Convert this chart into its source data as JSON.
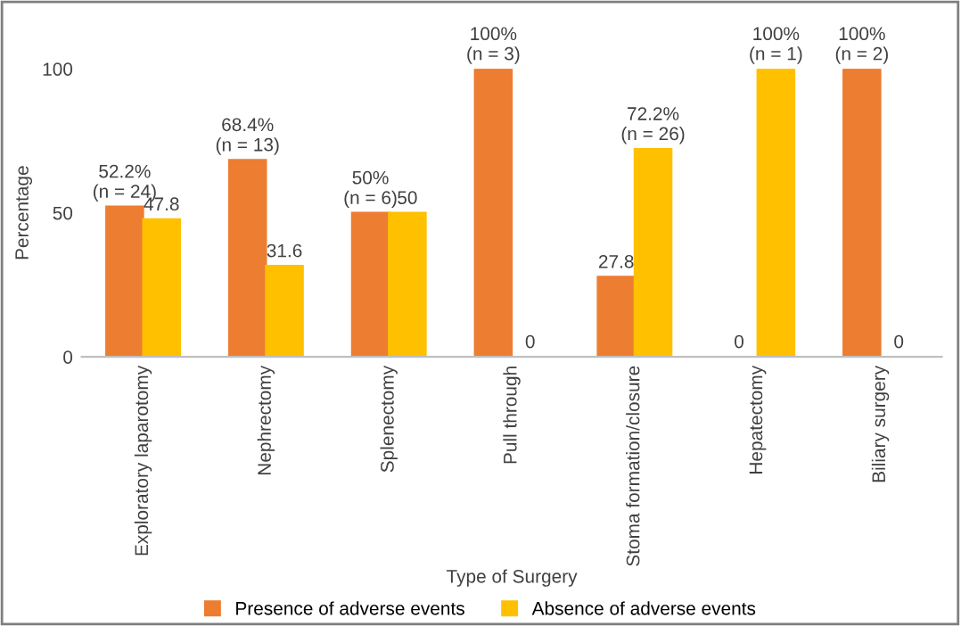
{
  "chart_data": {
    "type": "bar",
    "xlabel": "Type of Surgery",
    "ylabel": "Percentage",
    "categories": [
      "Exploratory laparotomy",
      "Nephrectomy",
      "Splenectomy",
      "Pull through",
      "Stoma formation/closure",
      "Hepatectomy",
      "Biliary surgery"
    ],
    "series": [
      {
        "name": "Presence of adverse events",
        "color": "#ed7d31",
        "values": [
          52.2,
          68.4,
          50,
          100,
          27.8,
          0,
          100
        ],
        "value_labels": [
          "52.2%\n(n = 24)",
          "68.4%\n(n = 13)",
          "50%\n(n = 6)",
          "100%\n(n = 3)",
          "27.8",
          "0",
          "100%\n(n = 2)"
        ]
      },
      {
        "name": "Absence of adverse events",
        "color": "#ffc000",
        "values": [
          47.8,
          31.6,
          50,
          0,
          72.2,
          100,
          0
        ],
        "value_labels": [
          "47.8",
          "31.6",
          "50",
          "0",
          "72.2%\n(n = 26)",
          "100%\n(n = 1)",
          "0"
        ]
      }
    ],
    "ylim": [
      0,
      100
    ],
    "yticks": [
      0,
      50,
      100
    ],
    "grid": false,
    "legend": "bottom"
  }
}
